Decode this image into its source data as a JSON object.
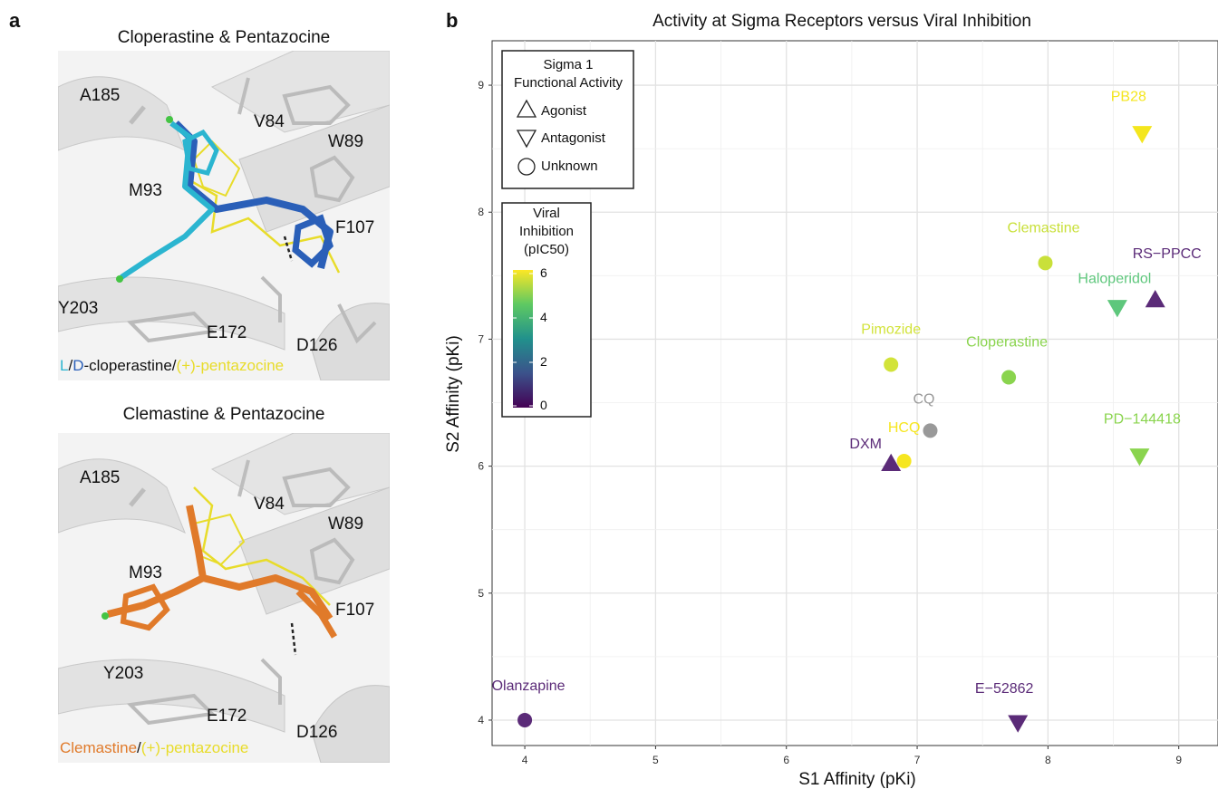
{
  "panel_a": {
    "letter": "a",
    "top": {
      "title": "Cloperastine & Pentazocine",
      "residues": [
        "A185",
        "V84",
        "W89",
        "M93",
        "F107",
        "Y203",
        "E172",
        "D126"
      ],
      "caption": {
        "part1": "L",
        "sep1": "/",
        "part2": "D",
        "part3": "-cloperastine/",
        "part4": "(+)-pentazocine"
      }
    },
    "bottom": {
      "title": "Clemastine & Pentazocine",
      "residues": [
        "A185",
        "V84",
        "W89",
        "M93",
        "F107",
        "Y203",
        "E172",
        "D126"
      ],
      "caption": {
        "part1": "Clemastine",
        "sep1": "/",
        "part2": "(+)-pentazocine"
      }
    },
    "colors": {
      "cyan": "#2bb5d0",
      "blue": "#2a5fb8",
      "yellow": "#e8dc2a",
      "orange": "#e07a2a",
      "gray": "#d4d4d4"
    }
  },
  "chart_data": {
    "panel_letter": "b",
    "type": "scatter",
    "title": "Activity at Sigma Receptors versus Viral Inhibition",
    "xlabel": "S1 Affinity (pKi)",
    "ylabel": "S2 Affinity (pKi)",
    "xlim": [
      3.75,
      9.3
    ],
    "ylim": [
      3.8,
      9.35
    ],
    "xticks": [
      4,
      5,
      6,
      7,
      8,
      9
    ],
    "yticks": [
      4,
      5,
      6,
      7,
      8,
      9
    ],
    "grid": true,
    "points": [
      {
        "name": "PB28",
        "x": 8.72,
        "y": 8.62,
        "shape": "antagonist",
        "pic50": 6.0,
        "color": "#f4e61e"
      },
      {
        "name": "Clemastine",
        "x": 7.98,
        "y": 7.6,
        "shape": "unknown",
        "pic50": 5.4,
        "color": "#c9e03a"
      },
      {
        "name": "RS−PPCC",
        "x": 8.82,
        "y": 7.31,
        "shape": "agonist",
        "pic50": 0.4,
        "color": "#5b2b78"
      },
      {
        "name": "Haloperidol",
        "x": 8.53,
        "y": 7.25,
        "shape": "antagonist",
        "pic50": 4.2,
        "color": "#5ec77c"
      },
      {
        "name": "Pimozide",
        "x": 6.8,
        "y": 6.8,
        "shape": "unknown",
        "pic50": 5.5,
        "color": "#d2e33a"
      },
      {
        "name": "Cloperastine",
        "x": 7.7,
        "y": 6.7,
        "shape": "unknown",
        "pic50": 4.6,
        "color": "#8ad44e"
      },
      {
        "name": "CQ",
        "x": 7.1,
        "y": 6.28,
        "shape": "unknown",
        "pic50": null,
        "color": "#999999"
      },
      {
        "name": "HCQ",
        "x": 6.9,
        "y": 6.04,
        "shape": "unknown",
        "pic50": 6.0,
        "color": "#f6e620"
      },
      {
        "name": "DXM",
        "x": 6.8,
        "y": 6.02,
        "shape": "agonist",
        "pic50": 0.6,
        "color": "#5b2b78"
      },
      {
        "name": "PD−144418",
        "x": 8.7,
        "y": 6.08,
        "shape": "antagonist",
        "pic50": 4.8,
        "color": "#8ad44e"
      },
      {
        "name": "Olanzapine",
        "x": 4.0,
        "y": 4.0,
        "shape": "unknown",
        "pic50": 0.5,
        "color": "#5b2b78"
      },
      {
        "name": "E−52862",
        "x": 7.77,
        "y": 3.98,
        "shape": "antagonist",
        "pic50": 0.5,
        "color": "#5b2b78"
      }
    ],
    "shape_legend": {
      "title_line1": "Sigma 1",
      "title_line2": "Functional Activity",
      "items": [
        "Agonist",
        "Antagonist",
        "Unknown"
      ]
    },
    "color_legend": {
      "title_line1": "Viral",
      "title_line2": "Inhibition",
      "title_line3": "(pIC50)",
      "range": [
        0,
        6
      ],
      "ticks": [
        "6",
        "4",
        "2",
        "0"
      ],
      "colors": [
        "#440154",
        "#3b528b",
        "#21918c",
        "#5ec962",
        "#fde725"
      ]
    }
  }
}
